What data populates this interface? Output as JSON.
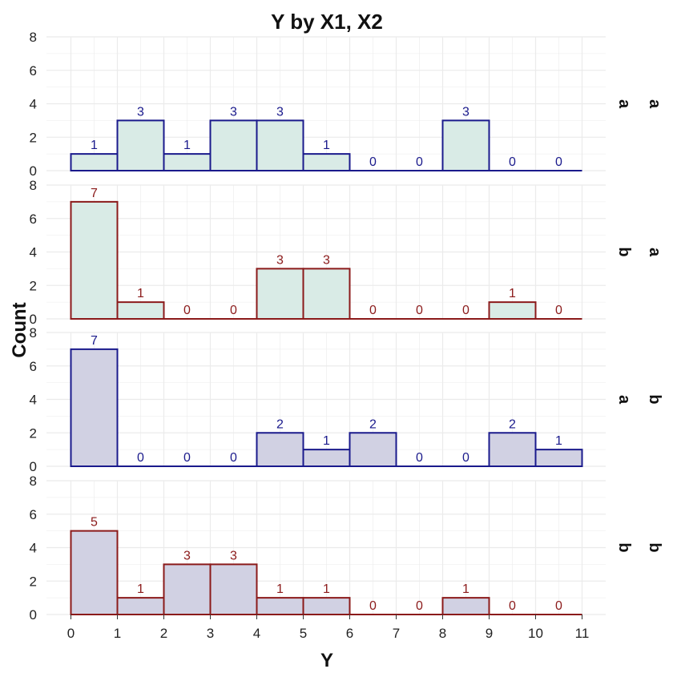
{
  "chart_data": {
    "type": "bar",
    "title": "Y by X1, X2",
    "xlabel": "Y",
    "ylabel": "Count",
    "bin_edges": [
      0,
      1,
      2,
      3,
      4,
      5,
      6,
      7,
      8,
      9,
      10,
      11
    ],
    "x_ticks": [
      "0",
      "1",
      "2",
      "3",
      "4",
      "5",
      "6",
      "7",
      "8",
      "9",
      "10",
      "11"
    ],
    "ylim": [
      0,
      8
    ],
    "y_ticks": [
      "0",
      "2",
      "4",
      "6",
      "8"
    ],
    "grid": true,
    "panels": [
      {
        "x1": "a",
        "x2": "a",
        "counts": [
          1,
          3,
          1,
          3,
          3,
          1,
          0,
          0,
          3,
          0,
          0
        ],
        "fill": "#d9ebe6",
        "stroke": "#1a1a8c",
        "label_color": "#1a1a8c"
      },
      {
        "x1": "b",
        "x2": "a",
        "counts": [
          7,
          1,
          0,
          0,
          3,
          3,
          0,
          0,
          0,
          1,
          0
        ],
        "fill": "#d9ebe6",
        "stroke": "#8b1a1a",
        "label_color": "#8b1a1a"
      },
      {
        "x1": "a",
        "x2": "b",
        "counts": [
          7,
          0,
          0,
          0,
          2,
          1,
          2,
          0,
          0,
          2,
          1
        ],
        "fill": "#d1d1e3",
        "stroke": "#1a1a8c",
        "label_color": "#1a1a8c"
      },
      {
        "x1": "b",
        "x2": "b",
        "counts": [
          5,
          1,
          3,
          3,
          1,
          1,
          0,
          0,
          1,
          0,
          0
        ],
        "fill": "#d1d1e3",
        "stroke": "#8b1a1a",
        "label_color": "#8b1a1a"
      }
    ]
  }
}
